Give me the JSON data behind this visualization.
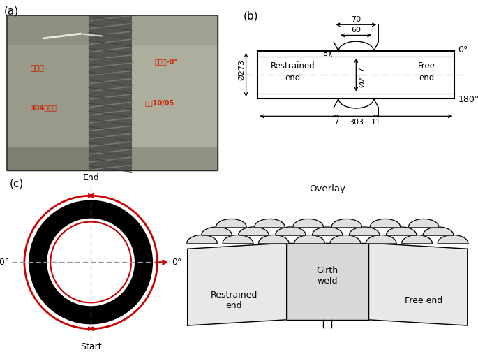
{
  "panel_a_label": "(a)",
  "panel_b_label": "(b)",
  "panel_c_label": "(c)",
  "dim_70": "70",
  "dim_60": "60",
  "dim_8": "8",
  "dim_273": "Ø273",
  "dim_217": "Ø217",
  "dim_7": "7",
  "dim_303": "303",
  "dim_11": "11",
  "angle_0": "0°",
  "angle_180": "180°",
  "label_restrained": "Restrained\nend",
  "label_free": "Free\nend",
  "label_end": "End",
  "label_start": "Start",
  "label_overlay": "Overlay",
  "label_girth": "Girth\nweld",
  "label_restrained2": "Restrained\nend",
  "label_free2": "Free end",
  "red_color": "#cc0000",
  "black_color": "#000000",
  "gray_color": "#888888",
  "bg_color": "#ffffff",
  "line_width": 1.0,
  "thick_line": 1.5
}
